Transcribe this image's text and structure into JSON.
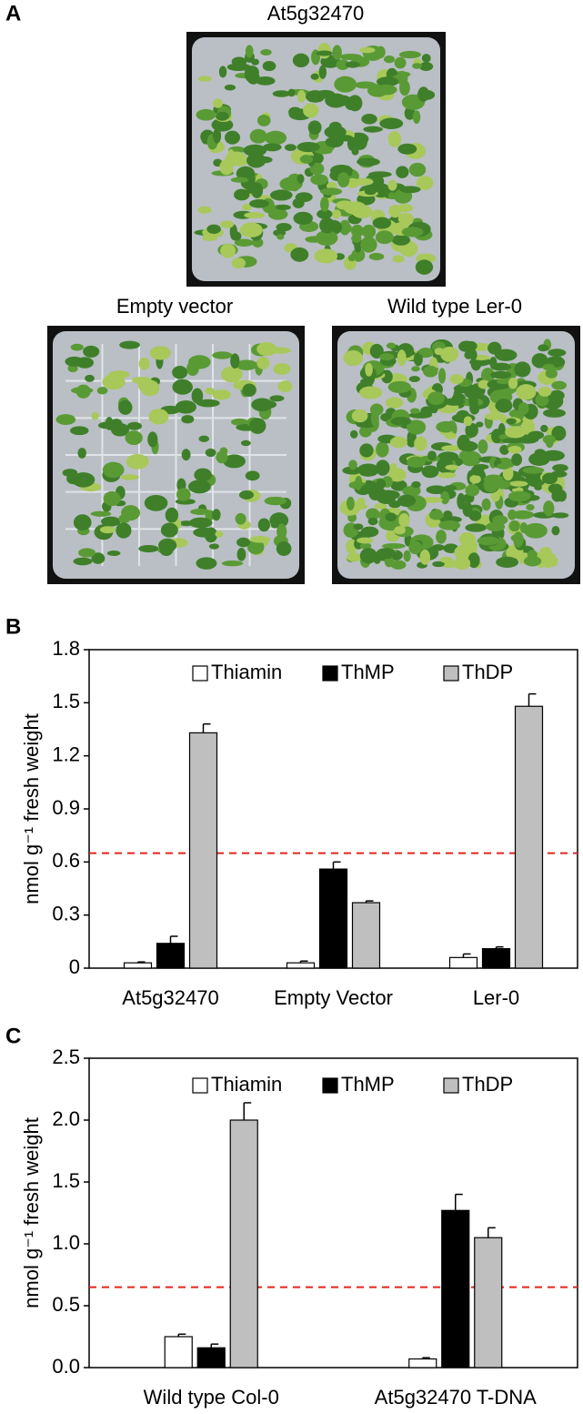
{
  "panel_labels": [
    "A",
    "B",
    "C"
  ],
  "photos": [
    {
      "caption": "At5g32470"
    },
    {
      "caption": "Empty vector"
    },
    {
      "caption": "Wild type Ler-0"
    }
  ],
  "chart_data": [
    {
      "type": "bar",
      "y_label": "nmol g⁻¹ fresh weight",
      "categories": [
        "At5g32470",
        "Empty Vector",
        "Ler-0"
      ],
      "series": [
        {
          "name": "Thiamin",
          "color": "#ffffff",
          "values": [
            0.03,
            0.03,
            0.06
          ],
          "errors": [
            0.005,
            0.01,
            0.02
          ]
        },
        {
          "name": "ThMP",
          "color": "#000000",
          "values": [
            0.14,
            0.56,
            0.11
          ],
          "errors": [
            0.04,
            0.04,
            0.01
          ]
        },
        {
          "name": "ThDP",
          "color": "#bfbfbf",
          "values": [
            1.33,
            0.37,
            1.48
          ],
          "errors": [
            0.05,
            0.01,
            0.07
          ]
        }
      ],
      "ylim": [
        0,
        1.8
      ],
      "yticks": [
        0,
        0.3,
        0.6,
        0.9,
        1.2,
        1.5,
        1.8
      ],
      "reference_line": {
        "value": 0.65,
        "color": "#e8231c"
      },
      "legend": "top"
    },
    {
      "type": "bar",
      "y_label": "nmol g⁻¹ fresh weight",
      "categories": [
        "Wild type Col-0",
        "At5g32470 T-DNA"
      ],
      "series": [
        {
          "name": "Thiamin",
          "color": "#ffffff",
          "values": [
            0.25,
            0.07
          ],
          "errors": [
            0.02,
            0.01
          ]
        },
        {
          "name": "ThMP",
          "color": "#000000",
          "values": [
            0.16,
            1.27
          ],
          "errors": [
            0.03,
            0.13
          ]
        },
        {
          "name": "ThDP",
          "color": "#bfbfbf",
          "values": [
            2.0,
            1.05
          ],
          "errors": [
            0.14,
            0.08
          ]
        }
      ],
      "ylim": [
        0,
        2.5
      ],
      "yticks": [
        {
          "value": 0,
          "label": "0.0"
        },
        0.5,
        {
          "value": 1,
          "label": "1.0"
        },
        1.5,
        {
          "value": 2,
          "label": "2.0"
        },
        2.5
      ],
      "reference_line": {
        "value": 0.65,
        "color": "#e8231c"
      },
      "legend": "top"
    }
  ]
}
